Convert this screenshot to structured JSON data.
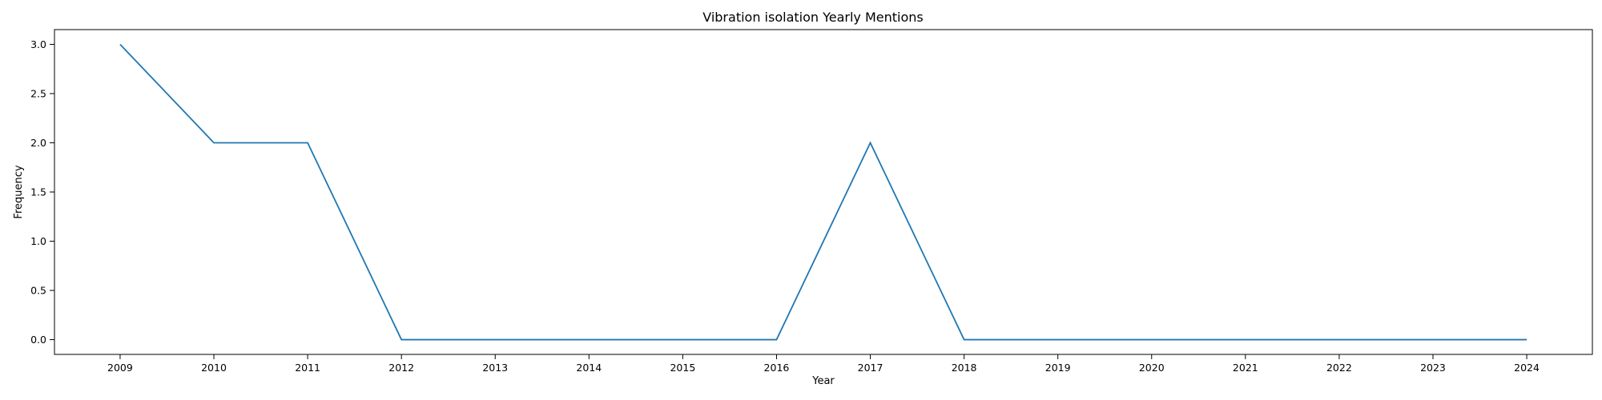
{
  "chart_data": {
    "type": "line",
    "title": "Vibration isolation Yearly Mentions",
    "xlabel": "Year",
    "ylabel": "Frequency",
    "x": [
      "2009",
      "2010",
      "2011",
      "2012",
      "2013",
      "2014",
      "2015",
      "2016",
      "2017",
      "2018",
      "2019",
      "2020",
      "2021",
      "2022",
      "2023",
      "2024"
    ],
    "series": [
      {
        "values": [
          3,
          2,
          2,
          0,
          0,
          0,
          0,
          0,
          2,
          0,
          0,
          0,
          0,
          0,
          0,
          0
        ],
        "color": "#1f77b4"
      }
    ],
    "xlim": [
      2008.3,
      2024.7
    ],
    "ylim": [
      -0.15,
      3.15
    ],
    "yticks": [
      0.0,
      0.5,
      1.0,
      1.5,
      2.0,
      2.5,
      3.0
    ],
    "ytick_labels": [
      "0.0",
      "0.5",
      "1.0",
      "1.5",
      "2.0",
      "2.5",
      "3.0"
    ],
    "grid": false,
    "legend": false
  }
}
